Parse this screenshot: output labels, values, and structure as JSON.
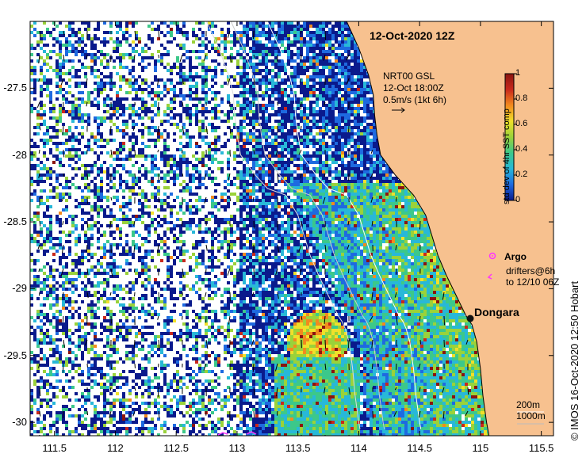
{
  "map": {
    "title": "12-Oct-2020 12Z",
    "x_ticks": [
      "111.5",
      "112",
      "112.5",
      "113",
      "113.5",
      "114",
      "114.5",
      "115",
      "115.5"
    ],
    "y_ticks": [
      "-27.5",
      "-28",
      "-28.5",
      "-29",
      "-29.5",
      "-30"
    ],
    "lon_range": [
      111.3,
      115.6
    ],
    "lat_range": [
      -30.1,
      -27.0
    ],
    "colors": {
      "land": "#f7c18f",
      "border": "#000000",
      "missing": "#ffffff"
    }
  },
  "vector_legend": {
    "line1": "NRT00 GSL",
    "line2": "12-Oct 18:00Z",
    "line3": "0.5m/s (1kt 6h)"
  },
  "colorbar": {
    "title": "std dev of 4hr SST comp",
    "ticks": [
      "0",
      "0.2",
      "0.4",
      "0.6",
      "0.8",
      "1"
    ],
    "range": [
      0,
      1
    ],
    "colormap": [
      "#0a1a8c",
      "#1e6ae0",
      "#28b8d8",
      "#3cc88a",
      "#9ad23a",
      "#f0e02a",
      "#f28a1e",
      "#c8281c",
      "#8a1410"
    ]
  },
  "legend": {
    "argo": "Argo",
    "drifters_line1": "drifters@6h",
    "drifters_line2": "to 12/10 06Z",
    "argo_color": "#ff33ff"
  },
  "place": {
    "name": "Dongara"
  },
  "scale_legend": {
    "line1": "200m",
    "line2": "1000m"
  },
  "credit": "© IMOS 16-Oct-2020 12:50 Hobart"
}
